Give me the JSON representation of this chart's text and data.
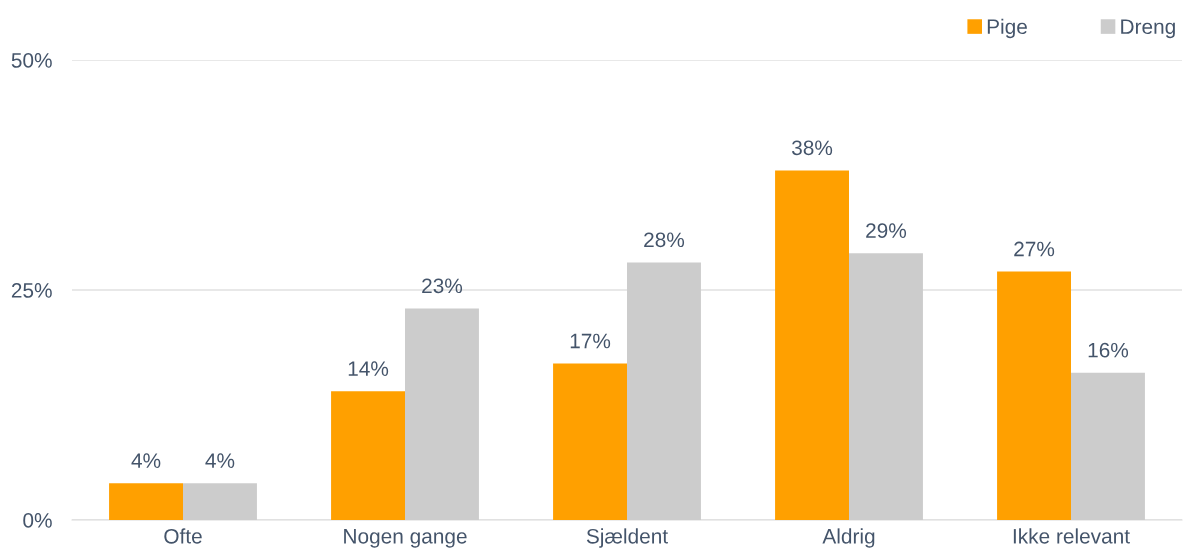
{
  "chart_data": {
    "type": "bar",
    "categories": [
      "Ofte",
      "Nogen gange",
      "Sjældent",
      "Aldrig",
      "Ikke relevant"
    ],
    "series": [
      {
        "name": "Pige",
        "color": "#ffa000",
        "values": [
          4,
          14,
          17,
          38,
          27
        ],
        "value_labels": [
          "4%",
          "14%",
          "17%",
          "38%",
          "27%"
        ]
      },
      {
        "name": "Dreng",
        "color": "#cccccc",
        "values": [
          4,
          23,
          28,
          29,
          16
        ],
        "value_labels": [
          "4%",
          "23%",
          "28%",
          "29%",
          "16%"
        ]
      }
    ],
    "ylim": [
      0,
      50
    ],
    "yticks": [
      {
        "value": 0,
        "label": "0%"
      },
      {
        "value": 25,
        "label": "25%"
      },
      {
        "value": 50,
        "label": "50%"
      }
    ],
    "grid": "y",
    "legend": "top right"
  }
}
